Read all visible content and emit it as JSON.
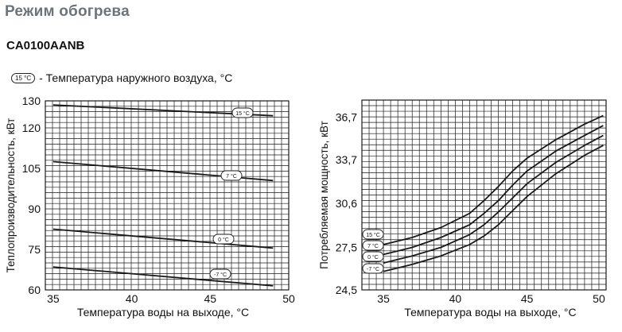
{
  "page": {
    "title": "Режим обогрева",
    "model": "CA0100AANB",
    "legend_badge": "15 °C",
    "legend_text": "- Температура наружного воздуха, °C"
  },
  "colors": {
    "line": "#1a1a1a",
    "grid": "#1a1a1a",
    "title": "#6d7378"
  },
  "chart_data": [
    {
      "type": "line",
      "xlabel": "Температура воды на выходе, °C",
      "ylabel": "Теплопроизводительность, кВт",
      "xlim": [
        34.5,
        50
      ],
      "ylim": [
        60,
        130
      ],
      "xticks": [
        {
          "value": 35,
          "label": "35"
        },
        {
          "value": 40,
          "label": "40"
        },
        {
          "value": 45,
          "label": "45"
        },
        {
          "value": 50,
          "label": "50"
        }
      ],
      "yticks": [
        {
          "value": 60,
          "label": "60"
        },
        {
          "value": 75,
          "label": "75"
        },
        {
          "value": 90,
          "label": "90"
        },
        {
          "value": 105,
          "label": "105"
        },
        {
          "value": 120,
          "label": "120"
        },
        {
          "value": 130,
          "label": "130"
        }
      ],
      "grid": true,
      "series": [
        {
          "name": "15 °C",
          "x": [
            35,
            49
          ],
          "y": [
            128.5,
            124.5
          ]
        },
        {
          "name": "7 °C",
          "x": [
            35,
            49
          ],
          "y": [
            107.5,
            100.5
          ]
        },
        {
          "name": "0 °C",
          "x": [
            35,
            49
          ],
          "y": [
            82.5,
            75.5
          ]
        },
        {
          "name": "-7 °C",
          "x": [
            35,
            49
          ],
          "y": [
            68.5,
            61.5
          ]
        }
      ]
    },
    {
      "type": "line",
      "xlabel": "Температура воды на выходе, °C",
      "ylabel": "Потребляемая мощность, кВт",
      "xlim": [
        33.5,
        50.5
      ],
      "ylim": [
        24.5,
        37.9
      ],
      "xticks": [
        {
          "value": 35,
          "label": "35"
        },
        {
          "value": 40,
          "label": "40"
        },
        {
          "value": 45,
          "label": "45"
        },
        {
          "value": 50,
          "label": "50"
        }
      ],
      "yticks": [
        {
          "value": 24.5,
          "label": "24,5"
        },
        {
          "value": 27.5,
          "label": "27,5"
        },
        {
          "value": 30.6,
          "label": "30,6"
        },
        {
          "value": 33.7,
          "label": "33,7"
        },
        {
          "value": 36.7,
          "label": "36,7"
        }
      ],
      "grid": true,
      "series": [
        {
          "name": "15 °C",
          "x": [
            35,
            37,
            39,
            41,
            42,
            43,
            44,
            45,
            47,
            49,
            50.3
          ],
          "y": [
            27.7,
            28.2,
            28.9,
            29.9,
            30.8,
            31.8,
            32.9,
            33.8,
            35.1,
            36.2,
            36.8
          ]
        },
        {
          "name": "7 °C",
          "x": [
            35,
            37,
            39,
            41,
            42,
            43,
            44,
            45,
            47,
            49,
            50.3
          ],
          "y": [
            27.0,
            27.5,
            28.2,
            29.1,
            29.9,
            30.8,
            31.9,
            32.9,
            34.3,
            35.4,
            36.1
          ]
        },
        {
          "name": "0 °C",
          "x": [
            35,
            37,
            39,
            41,
            42,
            43,
            44,
            45,
            47,
            49,
            50.3
          ],
          "y": [
            26.4,
            26.9,
            27.5,
            28.4,
            29.1,
            30.0,
            31.0,
            32.0,
            33.5,
            34.7,
            35.4
          ]
        },
        {
          "name": "-7 °C",
          "x": [
            35,
            37,
            39,
            41,
            42,
            43,
            44,
            45,
            47,
            49,
            50.3
          ],
          "y": [
            25.8,
            26.3,
            26.9,
            27.7,
            28.3,
            29.1,
            30.1,
            31.1,
            32.7,
            34.0,
            34.7
          ]
        }
      ]
    }
  ]
}
